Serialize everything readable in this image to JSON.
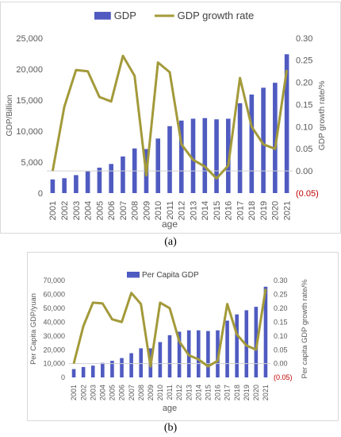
{
  "captions": {
    "a": "(a)",
    "b": "(b)"
  },
  "colors": {
    "bar": "#4f5bc0",
    "line": "#a39a3a",
    "negative_tick": "#c00000"
  },
  "chart_data": [
    {
      "type": "bar",
      "panel": "a",
      "x": [
        "2001",
        "2002",
        "2003",
        "2004",
        "2005",
        "2006",
        "2007",
        "2008",
        "2009",
        "2010",
        "2011",
        "2012",
        "2013",
        "2014",
        "2015",
        "2016",
        "2017",
        "2018",
        "2019",
        "2020",
        "2021"
      ],
      "series": [
        {
          "name": "GDP",
          "type": "bar",
          "axis": "left",
          "values": [
            2200,
            2400,
            2900,
            3500,
            4100,
            4700,
            5900,
            7200,
            7100,
            8800,
            10800,
            11700,
            12000,
            12100,
            11900,
            12000,
            14500,
            15900,
            17000,
            17800,
            22400
          ]
        },
        {
          "name": "GDP growth rate",
          "type": "line",
          "axis": "right",
          "values": [
            0.0,
            0.145,
            0.228,
            0.225,
            0.167,
            0.157,
            0.26,
            0.215,
            -0.01,
            0.245,
            0.223,
            0.06,
            0.025,
            0.01,
            -0.017,
            0.012,
            0.21,
            0.1,
            0.06,
            0.05,
            0.228
          ]
        }
      ],
      "xlabel": "age",
      "ylabel": "GDP/Billion",
      "y2label": "GDP growth rate/%",
      "ylim": [
        0,
        25000
      ],
      "y2lim": [
        -0.05,
        0.3
      ],
      "yticks": [
        "0",
        "5,000",
        "10,000",
        "15,000",
        "20,000",
        "25,000"
      ],
      "y2ticks": [
        "(0.05)",
        "0.00",
        "0.05",
        "0.10",
        "0.15",
        "0.20",
        "0.25",
        "0.30"
      ],
      "legend": "top",
      "grid": false
    },
    {
      "type": "bar",
      "panel": "b",
      "x": [
        "2001",
        "2002",
        "2003",
        "2004",
        "2005",
        "2006",
        "2007",
        "2008",
        "2009",
        "2010",
        "2011",
        "2012",
        "2013",
        "2014",
        "2015",
        "2016",
        "2017",
        "2018",
        "2019",
        "2020",
        "2021"
      ],
      "series": [
        {
          "name": "Per Capita GDP",
          "type": "bar",
          "axis": "left",
          "values": [
            6000,
            7500,
            8500,
            10500,
            12000,
            14000,
            17500,
            21000,
            21000,
            25500,
            30500,
            33000,
            34000,
            34000,
            33500,
            34000,
            41000,
            45500,
            48500,
            51000,
            65500
          ]
        },
        {
          "name": "",
          "type": "line",
          "axis": "right",
          "values": [
            0.0,
            0.135,
            0.22,
            0.217,
            0.16,
            0.15,
            0.255,
            0.215,
            -0.01,
            0.22,
            0.2,
            0.08,
            0.03,
            0.015,
            -0.01,
            0.01,
            0.215,
            0.105,
            0.065,
            0.05,
            0.27
          ]
        }
      ],
      "xlabel": "age",
      "ylabel": "Per Capita GDP/yuan",
      "y2label": "Per capita GDP growth rate/%",
      "ylim": [
        0,
        70000
      ],
      "y2lim": [
        -0.05,
        0.3
      ],
      "yticks": [
        "0",
        "10,000",
        "20,000",
        "30,000",
        "40,000",
        "50,000",
        "60,000",
        "70,000"
      ],
      "y2ticks": [
        "(0.05)",
        "0.00",
        "0.05",
        "0.10",
        "0.15",
        "0.20",
        "0.25",
        "0.30"
      ],
      "legend": "top",
      "grid": false
    }
  ]
}
